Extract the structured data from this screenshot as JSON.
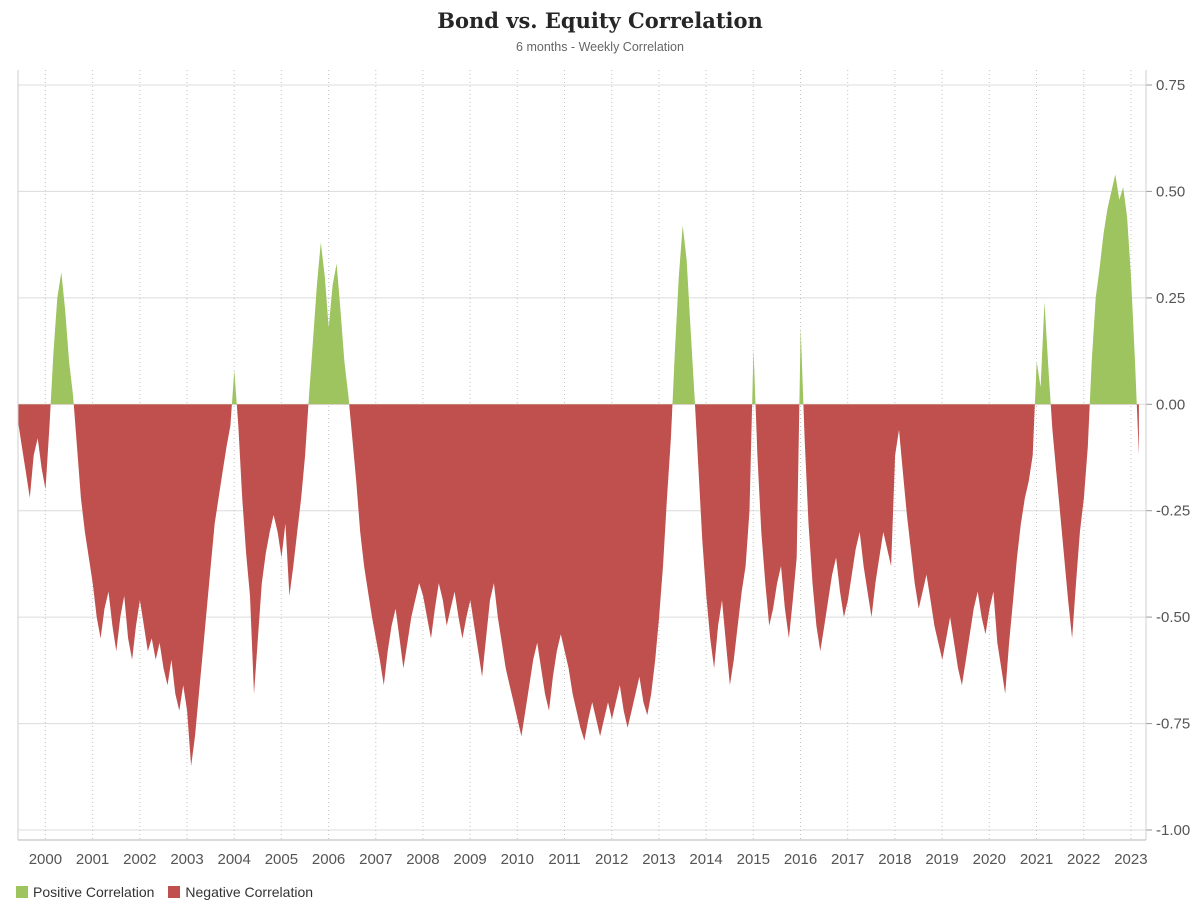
{
  "header": {
    "title": "Bond vs. Equity Correlation",
    "subtitle": "6 months - Weekly Correlation"
  },
  "legend": {
    "items": [
      {
        "label": "Positive Correlation",
        "color": "#9DC45F"
      },
      {
        "label": "Negative Correlation",
        "color": "#C0504D"
      }
    ]
  },
  "chart_data": {
    "type": "area",
    "title": "Bond vs. Equity Correlation",
    "subtitle": "6 months - Weekly Correlation",
    "ylim": [
      -1.0,
      0.75
    ],
    "y_ticks": [
      0.75,
      0.5,
      0.25,
      0.0,
      -0.25,
      -0.5,
      -0.75,
      -1.0
    ],
    "x_tick_labels": [
      "2000",
      "2001",
      "2002",
      "2003",
      "2004",
      "2005",
      "2006",
      "2007",
      "2008",
      "2009",
      "2010",
      "2011",
      "2012",
      "2013",
      "2014",
      "2015",
      "2016",
      "2017",
      "2018",
      "2019",
      "2020",
      "2021",
      "2022",
      "2023"
    ],
    "x_unit": "decimal_year",
    "x_start_decimal_year": 1999.42,
    "x_step_years": 0.083333,
    "positive_color": "#9DC45F",
    "negative_color": "#C0504D",
    "grid": {
      "horizontal": "solid",
      "vertical": "dotted-yearly"
    },
    "legend_position": "bottom-left",
    "series": [
      {
        "name": "6-month weekly correlation",
        "values": [
          -0.04,
          -0.1,
          -0.16,
          -0.22,
          -0.12,
          -0.08,
          -0.15,
          -0.2,
          -0.05,
          0.12,
          0.25,
          0.31,
          0.22,
          0.1,
          0.02,
          -0.1,
          -0.22,
          -0.3,
          -0.36,
          -0.42,
          -0.5,
          -0.55,
          -0.48,
          -0.44,
          -0.52,
          -0.58,
          -0.5,
          -0.45,
          -0.55,
          -0.6,
          -0.52,
          -0.46,
          -0.52,
          -0.58,
          -0.55,
          -0.6,
          -0.56,
          -0.62,
          -0.66,
          -0.6,
          -0.68,
          -0.72,
          -0.66,
          -0.72,
          -0.85,
          -0.78,
          -0.68,
          -0.58,
          -0.48,
          -0.38,
          -0.28,
          -0.22,
          -0.16,
          -0.1,
          -0.05,
          0.08,
          -0.05,
          -0.22,
          -0.35,
          -0.45,
          -0.68,
          -0.55,
          -0.42,
          -0.35,
          -0.3,
          -0.26,
          -0.3,
          -0.36,
          -0.28,
          -0.45,
          -0.38,
          -0.3,
          -0.22,
          -0.12,
          0.02,
          0.15,
          0.28,
          0.38,
          0.3,
          0.18,
          0.28,
          0.33,
          0.22,
          0.1,
          0.02,
          -0.08,
          -0.18,
          -0.3,
          -0.38,
          -0.44,
          -0.5,
          -0.55,
          -0.6,
          -0.66,
          -0.58,
          -0.52,
          -0.48,
          -0.55,
          -0.62,
          -0.56,
          -0.5,
          -0.46,
          -0.42,
          -0.45,
          -0.5,
          -0.55,
          -0.48,
          -0.42,
          -0.46,
          -0.52,
          -0.48,
          -0.44,
          -0.5,
          -0.55,
          -0.5,
          -0.46,
          -0.52,
          -0.58,
          -0.64,
          -0.55,
          -0.46,
          -0.42,
          -0.5,
          -0.56,
          -0.62,
          -0.66,
          -0.7,
          -0.74,
          -0.78,
          -0.72,
          -0.66,
          -0.6,
          -0.56,
          -0.62,
          -0.68,
          -0.72,
          -0.64,
          -0.58,
          -0.54,
          -0.58,
          -0.62,
          -0.68,
          -0.72,
          -0.76,
          -0.79,
          -0.74,
          -0.7,
          -0.74,
          -0.78,
          -0.74,
          -0.7,
          -0.74,
          -0.7,
          -0.66,
          -0.72,
          -0.76,
          -0.72,
          -0.68,
          -0.64,
          -0.7,
          -0.73,
          -0.68,
          -0.6,
          -0.5,
          -0.38,
          -0.22,
          -0.08,
          0.12,
          0.3,
          0.42,
          0.34,
          0.18,
          0.02,
          -0.15,
          -0.32,
          -0.45,
          -0.55,
          -0.62,
          -0.52,
          -0.46,
          -0.56,
          -0.66,
          -0.6,
          -0.52,
          -0.44,
          -0.38,
          -0.25,
          0.13,
          -0.12,
          -0.3,
          -0.42,
          -0.52,
          -0.48,
          -0.42,
          -0.38,
          -0.48,
          -0.55,
          -0.46,
          -0.36,
          0.18,
          -0.08,
          -0.28,
          -0.42,
          -0.52,
          -0.58,
          -0.52,
          -0.46,
          -0.4,
          -0.36,
          -0.44,
          -0.5,
          -0.46,
          -0.4,
          -0.34,
          -0.3,
          -0.38,
          -0.44,
          -0.5,
          -0.42,
          -0.36,
          -0.3,
          -0.34,
          -0.38,
          -0.12,
          -0.06,
          -0.16,
          -0.26,
          -0.34,
          -0.42,
          -0.48,
          -0.44,
          -0.4,
          -0.46,
          -0.52,
          -0.56,
          -0.6,
          -0.55,
          -0.5,
          -0.56,
          -0.62,
          -0.66,
          -0.6,
          -0.54,
          -0.48,
          -0.44,
          -0.5,
          -0.54,
          -0.48,
          -0.44,
          -0.56,
          -0.62,
          -0.68,
          -0.56,
          -0.46,
          -0.36,
          -0.28,
          -0.22,
          -0.18,
          -0.12,
          0.1,
          0.04,
          0.24,
          0.08,
          -0.06,
          -0.16,
          -0.26,
          -0.36,
          -0.46,
          -0.55,
          -0.42,
          -0.3,
          -0.22,
          -0.1,
          0.1,
          0.25,
          0.32,
          0.4,
          0.46,
          0.5,
          0.54,
          0.48,
          0.51,
          0.44,
          0.3,
          0.1,
          -0.12
        ]
      }
    ]
  }
}
